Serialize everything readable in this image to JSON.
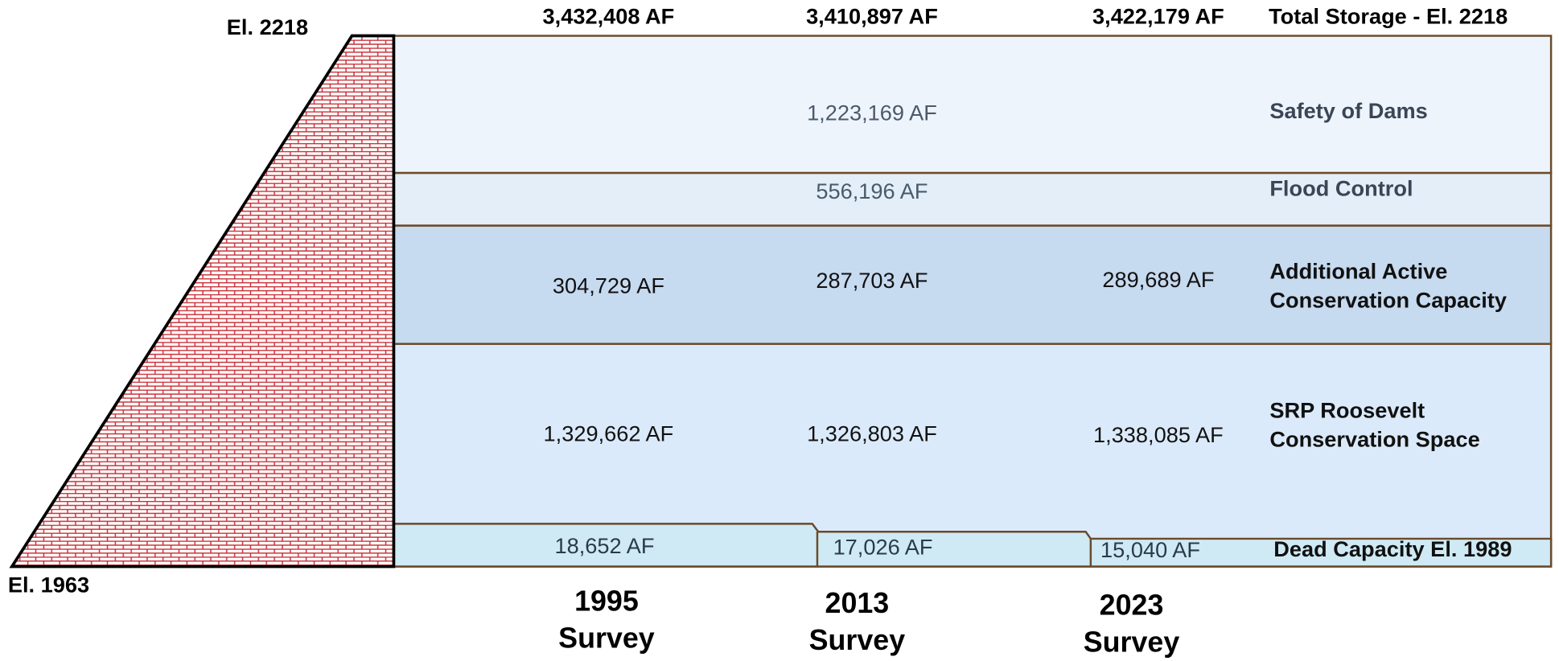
{
  "elevations": {
    "top": "El. 2218",
    "bottom": "El. 1963"
  },
  "totals": {
    "values": [
      "3,432,408 AF",
      "3,410,897 AF",
      "3,422,179 AF"
    ],
    "label": "Total Storage - El. 2218"
  },
  "zones": [
    {
      "label": [
        "Safety of Dams"
      ],
      "values": [
        "1,223,169 AF"
      ]
    },
    {
      "label": [
        "Flood Control"
      ],
      "values": [
        "556,196 AF"
      ]
    },
    {
      "label": [
        "Additional Active",
        "Conservation Capacity"
      ],
      "values": [
        "304,729 AF",
        "287,703 AF",
        "289,689 AF"
      ]
    },
    {
      "label": [
        "SRP Roosevelt",
        "Conservation Space"
      ],
      "values": [
        "1,329,662 AF",
        "1,326,803 AF",
        "1,338,085 AF"
      ]
    },
    {
      "label": [
        "Dead Capacity El. 1989"
      ],
      "values": [
        "18,652 AF",
        "17,026 AF",
        "15,040 AF"
      ]
    }
  ],
  "surveys": [
    {
      "year": "1995",
      "label": "Survey"
    },
    {
      "year": "2013",
      "label": "Survey"
    },
    {
      "year": "2023",
      "label": "Survey"
    }
  ]
}
